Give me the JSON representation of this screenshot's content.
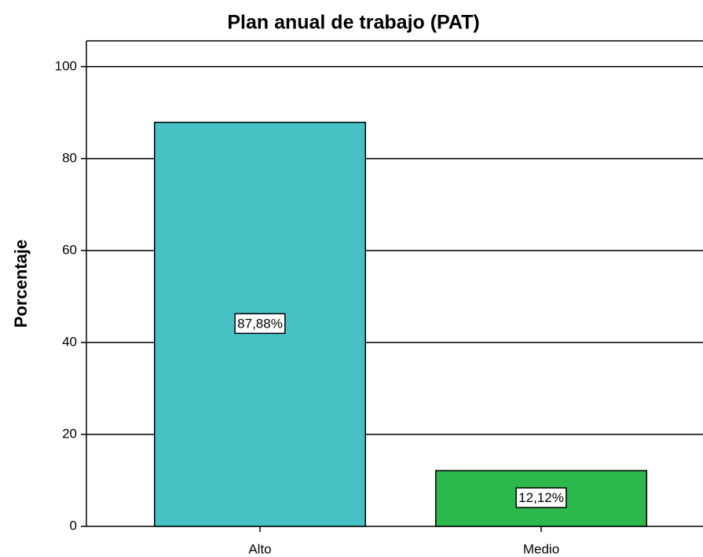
{
  "chart_data": {
    "type": "bar",
    "title": "Plan anual de trabajo (PAT)",
    "y_label": "Porcentaje",
    "categories": [
      "Alto",
      "Medio"
    ],
    "values": [
      87.88,
      12.12
    ],
    "value_labels": [
      "87,88%",
      "12,12%"
    ],
    "colors": [
      "#48c1c4",
      "#2db84c"
    ],
    "ylim": [
      0,
      105.6
    ],
    "yticks": [
      0,
      20,
      40,
      60,
      80,
      100
    ],
    "grid": true
  }
}
